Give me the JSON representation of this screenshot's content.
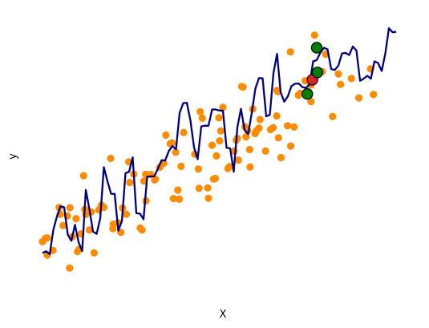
{
  "chart_data": {
    "type": "scatter",
    "xlabel": "X",
    "ylabel": "y",
    "xlim": [
      0,
      100
    ],
    "ylim": [
      0,
      100
    ],
    "grid": false,
    "legend": "none",
    "colors": {
      "scatter": "#ff8c00",
      "line": "#000080",
      "highlight_red": "#d62728",
      "highlight_green": "#008000",
      "marker_edge": "#000000"
    },
    "scatter_points": [
      [
        0.0,
        17.9
      ],
      [
        0.8,
        19.5
      ],
      [
        1.3,
        19.7
      ],
      [
        1.3,
        11.5
      ],
      [
        2.9,
        13.7
      ],
      [
        4.6,
        34.2
      ],
      [
        4.9,
        31.0
      ],
      [
        5.7,
        25.6
      ],
      [
        6.9,
        30.2
      ],
      [
        7.5,
        5.3
      ],
      [
        7.6,
        34.1
      ],
      [
        8.3,
        20.3
      ],
      [
        9.3,
        28.9
      ],
      [
        9.7,
        13.1
      ],
      [
        10.1,
        14.2
      ],
      [
        10.6,
        21.6
      ],
      [
        11.4,
        49.4
      ],
      [
        11.7,
        33.3
      ],
      [
        12.0,
        30.9
      ],
      [
        13.0,
        23.5
      ],
      [
        13.5,
        32.1
      ],
      [
        14.3,
        12.5
      ],
      [
        15.6,
        33.1
      ],
      [
        16.3,
        35.3
      ],
      [
        17.0,
        34.3
      ],
      [
        18.9,
        57.7
      ],
      [
        19.5,
        24.1
      ],
      [
        19.6,
        26.2
      ],
      [
        20.9,
        26.9
      ],
      [
        21.7,
        22.3
      ],
      [
        22.2,
        34.0
      ],
      [
        23.2,
        31.0
      ],
      [
        23.9,
        56.0
      ],
      [
        24.2,
        46.2
      ],
      [
        25.3,
        50.1
      ],
      [
        27.1,
        24.4
      ],
      [
        27.6,
        23.5
      ],
      [
        28.1,
        46.9
      ],
      [
        28.6,
        50.1
      ],
      [
        28.7,
        37.4
      ],
      [
        30.0,
        50.0
      ],
      [
        31.1,
        47.4
      ],
      [
        31.3,
        47.7
      ],
      [
        32.5,
        53.5
      ],
      [
        33.6,
        55.4
      ],
      [
        34.2,
        68.8
      ],
      [
        35.4,
        64.7
      ],
      [
        35.9,
        65.1
      ],
      [
        36.3,
        38.5
      ],
      [
        36.9,
        60.6
      ],
      [
        37.5,
        42.5
      ],
      [
        37.9,
        38.2
      ],
      [
        38.4,
        53.9
      ],
      [
        39.1,
        70.1
      ],
      [
        42.2,
        59.7
      ],
      [
        43.2,
        52.6
      ],
      [
        43.4,
        43.4
      ],
      [
        43.7,
        80.0
      ],
      [
        44.3,
        76.9
      ],
      [
        45.8,
        43.6
      ],
      [
        46.0,
        38.6
      ],
      [
        47.0,
        64.0
      ],
      [
        47.4,
        47.8
      ],
      [
        47.9,
        48.1
      ],
      [
        48.2,
        58.9
      ],
      [
        48.9,
        77.1
      ],
      [
        49.1,
        66.1
      ],
      [
        49.4,
        70.8
      ],
      [
        50.0,
        82.1
      ],
      [
        51.4,
        52.9
      ],
      [
        51.8,
        53.8
      ],
      [
        53.1,
        61.2
      ],
      [
        53.7,
        66.4
      ],
      [
        54.0,
        67.3
      ],
      [
        54.3,
        56.9
      ],
      [
        55.2,
        92.1
      ],
      [
        55.6,
        91.8
      ],
      [
        56.1,
        72.8
      ],
      [
        56.4,
        68.0
      ],
      [
        56.9,
        71.0
      ],
      [
        57.4,
        61.9
      ],
      [
        57.5,
        53.6
      ],
      [
        58.3,
        81.3
      ],
      [
        58.9,
        69.6
      ],
      [
        59.3,
        70.9
      ],
      [
        60.0,
        72.2
      ],
      [
        60.3,
        76.3
      ],
      [
        61.8,
        61.2
      ],
      [
        63.2,
        71.5
      ],
      [
        63.9,
        72.4
      ],
      [
        64.9,
        78.0
      ],
      [
        65.0,
        90.2
      ],
      [
        65.2,
        89.6
      ],
      [
        65.4,
        67.5
      ],
      [
        66.1,
        58.1
      ],
      [
        67.9,
        73.3
      ],
      [
        68.7,
        108.6
      ],
      [
        68.8,
        63.6
      ],
      [
        69.7,
        72.7
      ],
      [
        70.9,
        87.9
      ],
      [
        71.4,
        88.8
      ],
      [
        72.8,
        94.8
      ],
      [
        74.4,
        84.9
      ],
      [
        74.4,
        92.8
      ],
      [
        75.4,
        116.6
      ],
      [
        77.5,
        99.2
      ],
      [
        78.5,
        107.5
      ],
      [
        80.4,
        77.7
      ],
      [
        82.0,
        98.1
      ],
      [
        82.6,
        93.1
      ],
      [
        85.6,
        95.9
      ],
      [
        87.7,
        86.6
      ],
      [
        90.9,
        100.5
      ],
      [
        91.7,
        88.2
      ]
    ],
    "line_points": [
      [
        0.0,
        12.5
      ],
      [
        1.0,
        13.3
      ],
      [
        2.0,
        11.9
      ],
      [
        3.0,
        23.5
      ],
      [
        4.0,
        29.9
      ],
      [
        5.0,
        34.8
      ],
      [
        6.0,
        34.3
      ],
      [
        7.0,
        21.3
      ],
      [
        8.0,
        18.3
      ],
      [
        9.0,
        26.0
      ],
      [
        10.0,
        17.6
      ],
      [
        11.0,
        13.4
      ],
      [
        12.0,
        42.6
      ],
      [
        13.0,
        33.4
      ],
      [
        14.0,
        22.7
      ],
      [
        15.0,
        21.6
      ],
      [
        16.0,
        29.0
      ],
      [
        17.0,
        53.5
      ],
      [
        18.0,
        46.8
      ],
      [
        19.0,
        40.8
      ],
      [
        20.0,
        40.7
      ],
      [
        21.0,
        23.1
      ],
      [
        22.0,
        27.7
      ],
      [
        23.0,
        50.6
      ],
      [
        24.0,
        51.3
      ],
      [
        25.0,
        58.2
      ],
      [
        26.0,
        31.5
      ],
      [
        27.0,
        31.3
      ],
      [
        28.0,
        28.6
      ],
      [
        29.0,
        48.9
      ],
      [
        30.0,
        49.1
      ],
      [
        31.0,
        49.1
      ],
      [
        32.0,
        52.9
      ],
      [
        33.0,
        56.8
      ],
      [
        34.0,
        56.7
      ],
      [
        35.0,
        61.2
      ],
      [
        36.0,
        63.6
      ],
      [
        37.0,
        62.1
      ],
      [
        38.0,
        79.4
      ],
      [
        39.0,
        84.1
      ],
      [
        40.0,
        84.3
      ],
      [
        41.0,
        75.8
      ],
      [
        42.0,
        62.9
      ],
      [
        43.0,
        57.3
      ],
      [
        44.0,
        73.0
      ],
      [
        45.0,
        73.3
      ],
      [
        46.0,
        73.3
      ],
      [
        47.0,
        81.1
      ],
      [
        48.0,
        81.1
      ],
      [
        49.0,
        80.6
      ],
      [
        50.0,
        80.5
      ],
      [
        51.0,
        62.8
      ],
      [
        52.0,
        62.5
      ],
      [
        53.0,
        51.3
      ],
      [
        54.0,
        72.5
      ],
      [
        55.0,
        81.4
      ],
      [
        56.0,
        71.3
      ],
      [
        57.0,
        69.3
      ],
      [
        58.0,
        79.6
      ],
      [
        59.0,
        91.1
      ],
      [
        60.0,
        96.1
      ],
      [
        61.0,
        96.0
      ],
      [
        62.0,
        77.8
      ],
      [
        63.0,
        78.5
      ],
      [
        64.0,
        98.3
      ],
      [
        65.0,
        107.7
      ],
      [
        66.0,
        89.3
      ],
      [
        67.0,
        84.8
      ],
      [
        68.0,
        87.4
      ],
      [
        69.0,
        92.3
      ],
      [
        70.0,
        93.4
      ],
      [
        71.0,
        93.5
      ],
      [
        72.0,
        91.8
      ],
      [
        73.0,
        91.4
      ],
      [
        74.0,
        93.0
      ],
      [
        75.0,
        104.1
      ],
      [
        76.0,
        104.7
      ],
      [
        77.0,
        108.2
      ],
      [
        78.0,
        110.6
      ],
      [
        79.0,
        109.8
      ],
      [
        80.0,
        100.4
      ],
      [
        81.0,
        100.0
      ],
      [
        82.0,
        102.1
      ],
      [
        83.0,
        107.9
      ],
      [
        84.0,
        108.1
      ],
      [
        85.0,
        107.1
      ],
      [
        86.0,
        111.2
      ],
      [
        87.0,
        109.3
      ],
      [
        88.0,
        94.8
      ],
      [
        89.0,
        95.8
      ],
      [
        90.0,
        97.2
      ],
      [
        91.0,
        95.8
      ],
      [
        92.0,
        104.1
      ],
      [
        93.0,
        103.3
      ],
      [
        94.0,
        99.5
      ],
      [
        95.0,
        107.8
      ],
      [
        96.0,
        119.9
      ],
      [
        97.0,
        118.0
      ],
      [
        98.0,
        118.2
      ]
    ],
    "highlight_points": [
      {
        "x": 74.8,
        "y": 95.3,
        "color": "red"
      },
      {
        "x": 76.0,
        "y": 110.6,
        "color": "green"
      },
      {
        "x": 76.2,
        "y": 98.8,
        "color": "green"
      },
      {
        "x": 73.4,
        "y": 88.5,
        "color": "green"
      }
    ]
  }
}
